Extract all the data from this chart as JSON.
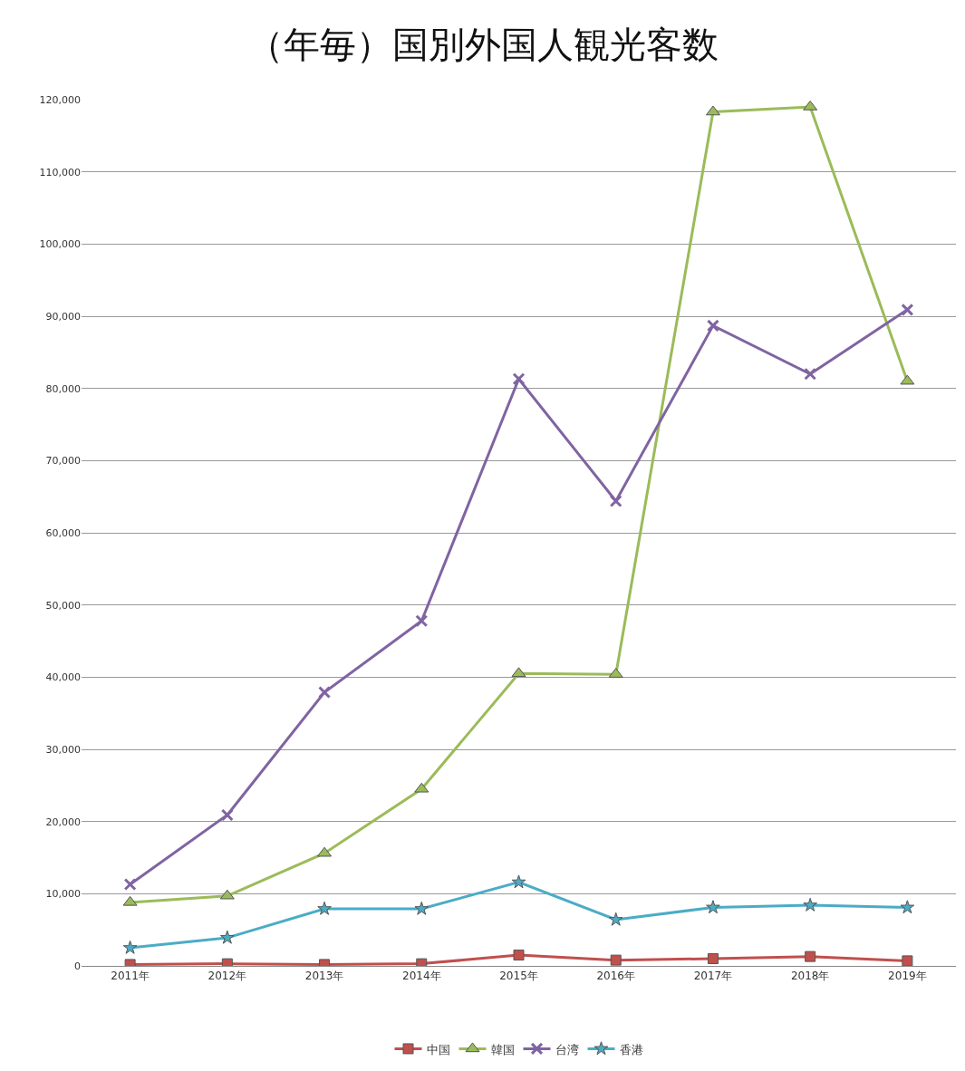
{
  "chart_data": {
    "type": "line",
    "title": "（年毎）国別外国人観光客数",
    "categories": [
      "2011年",
      "2012年",
      "2013年",
      "2014年",
      "2015年",
      "2016年",
      "2017年",
      "2018年",
      "2019年"
    ],
    "series": [
      {
        "name": "中国",
        "color": "#c0504d",
        "marker": "square",
        "values": [
          200,
          300,
          200,
          300,
          1500,
          800,
          1000,
          1300,
          700
        ]
      },
      {
        "name": "韓国",
        "color": "#9bbb59",
        "marker": "triangle",
        "values": [
          8800,
          9700,
          15600,
          24500,
          40500,
          40400,
          118300,
          119000,
          81000
        ]
      },
      {
        "name": "台湾",
        "color": "#8064a2",
        "marker": "cross",
        "values": [
          11300,
          20900,
          37900,
          47800,
          81300,
          64400,
          88700,
          82000,
          90900
        ]
      },
      {
        "name": "香港",
        "color": "#4bacc6",
        "marker": "star",
        "values": [
          2500,
          3900,
          7900,
          7900,
          11600,
          6400,
          8100,
          8400,
          8100
        ]
      }
    ],
    "ylim": [
      0,
      120000
    ],
    "yticks": [
      {
        "value": 0,
        "label": "0"
      },
      {
        "value": 10000,
        "label": "10,000"
      },
      {
        "value": 20000,
        "label": "20,000"
      },
      {
        "value": 30000,
        "label": "30,000"
      },
      {
        "value": 40000,
        "label": "40,000"
      },
      {
        "value": 50000,
        "label": "50,000"
      },
      {
        "value": 60000,
        "label": "60,000"
      },
      {
        "value": 70000,
        "label": "70,000"
      },
      {
        "value": 80000,
        "label": "80,000"
      },
      {
        "value": 90000,
        "label": "90,000"
      },
      {
        "value": 100000,
        "label": "100,000"
      },
      {
        "value": 110000,
        "label": "110,000"
      },
      {
        "value": 120000,
        "label": "120,000"
      }
    ],
    "grid": "y",
    "legend": "bottom",
    "line_style": "solid"
  }
}
